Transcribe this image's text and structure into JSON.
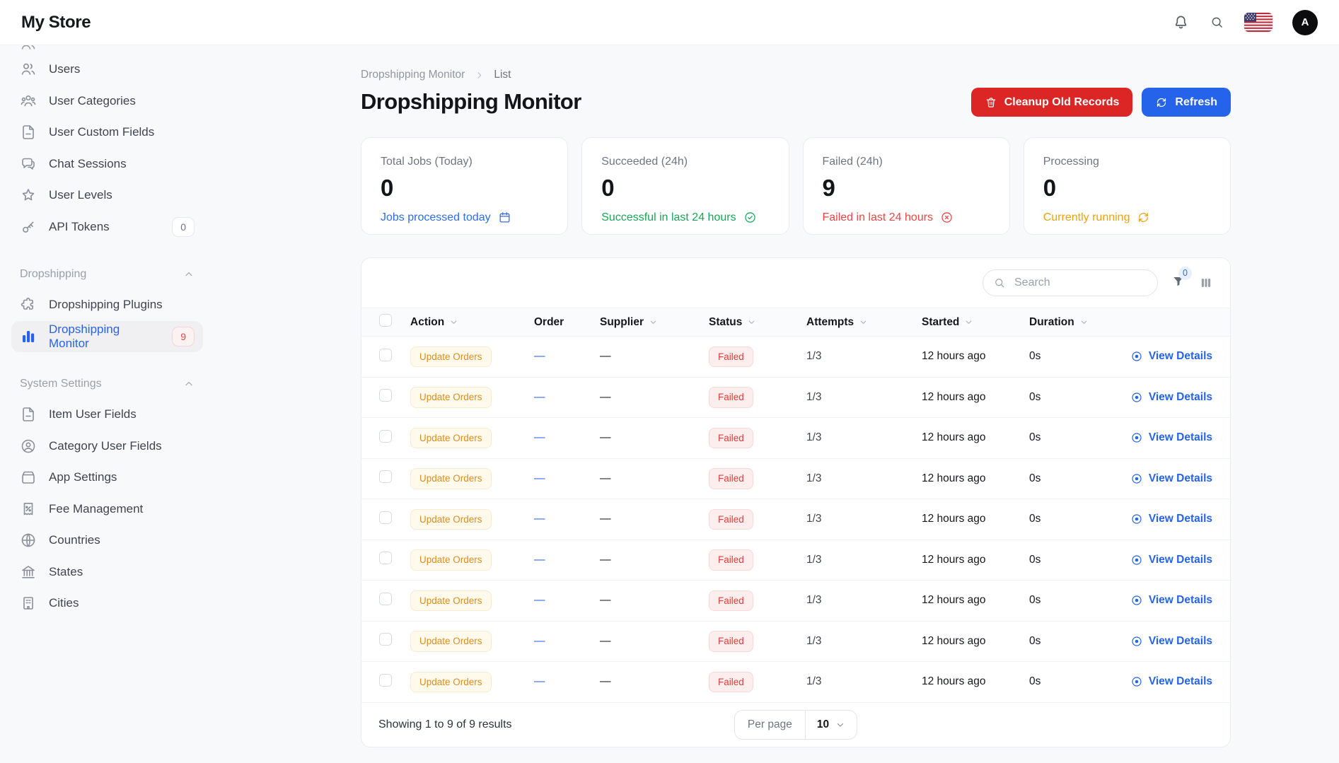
{
  "header": {
    "brand": "My Store",
    "avatar_initial": "A"
  },
  "colors": {
    "accent": "#2563eb",
    "danger": "#dc2626",
    "success": "#16a34a",
    "warning": "#f59e0b"
  },
  "sidebar": {
    "groups": [
      {
        "title": null,
        "items": [
          {
            "label": "Users",
            "icon": "users"
          },
          {
            "label": "User Categories",
            "icon": "user-group"
          },
          {
            "label": "User Custom Fields",
            "icon": "file-lines"
          },
          {
            "label": "Chat Sessions",
            "icon": "chat-bubbles"
          },
          {
            "label": "User Levels",
            "icon": "star"
          },
          {
            "label": "API Tokens",
            "icon": "key",
            "badge": "0",
            "badge_style": "neutral"
          }
        ]
      },
      {
        "title": "Dropshipping",
        "items": [
          {
            "label": "Dropshipping Plugins",
            "icon": "puzzle"
          },
          {
            "label": "Dropshipping Monitor",
            "icon": "bar-chart",
            "badge": "9",
            "badge_style": "danger",
            "active": true
          }
        ]
      },
      {
        "title": "System Settings",
        "items": [
          {
            "label": "Item User Fields",
            "icon": "file-lines"
          },
          {
            "label": "Category User Fields",
            "icon": "user-circle"
          },
          {
            "label": "App Settings",
            "icon": "archive-box"
          },
          {
            "label": "Fee Management",
            "icon": "receipt-percent"
          },
          {
            "label": "Countries",
            "icon": "globe"
          },
          {
            "label": "States",
            "icon": "landmark"
          },
          {
            "label": "Cities",
            "icon": "building"
          }
        ]
      }
    ]
  },
  "breadcrumb": {
    "items": [
      "Dropshipping Monitor",
      "List"
    ]
  },
  "page": {
    "title": "Dropshipping Monitor"
  },
  "actions": {
    "cleanup_label": "Cleanup Old Records",
    "refresh_label": "Refresh"
  },
  "stats": [
    {
      "label": "Total Jobs (Today)",
      "value": "0",
      "caption": "Jobs processed today",
      "icon": "calendar",
      "color": "#2f6ce8"
    },
    {
      "label": "Succeeded (24h)",
      "value": "0",
      "caption": "Successful in last 24 hours",
      "icon": "check-circle",
      "color": "#18a657"
    },
    {
      "label": "Failed (24h)",
      "value": "9",
      "caption": "Failed in last 24 hours",
      "icon": "x-circle",
      "color": "#ef4444"
    },
    {
      "label": "Processing",
      "value": "0",
      "caption": "Currently running",
      "icon": "arrows-rotate",
      "color": "#f0a10c"
    }
  ],
  "table": {
    "search_placeholder": "Search",
    "filter_badge": "0",
    "columns": [
      {
        "label": "Action",
        "sortable": true
      },
      {
        "label": "Order",
        "sortable": false
      },
      {
        "label": "Supplier",
        "sortable": true
      },
      {
        "label": "Status",
        "sortable": true
      },
      {
        "label": "Attempts",
        "sortable": true
      },
      {
        "label": "Started",
        "sortable": true
      },
      {
        "label": "Duration",
        "sortable": true
      }
    ],
    "rows": [
      {
        "action": "Update Orders",
        "order": "—",
        "supplier": "—",
        "status": "Failed",
        "attempts": "1/3",
        "started": "12 hours ago",
        "duration": "0s",
        "details": "View Details"
      },
      {
        "action": "Update Orders",
        "order": "—",
        "supplier": "—",
        "status": "Failed",
        "attempts": "1/3",
        "started": "12 hours ago",
        "duration": "0s",
        "details": "View Details"
      },
      {
        "action": "Update Orders",
        "order": "—",
        "supplier": "—",
        "status": "Failed",
        "attempts": "1/3",
        "started": "12 hours ago",
        "duration": "0s",
        "details": "View Details"
      },
      {
        "action": "Update Orders",
        "order": "—",
        "supplier": "—",
        "status": "Failed",
        "attempts": "1/3",
        "started": "12 hours ago",
        "duration": "0s",
        "details": "View Details"
      },
      {
        "action": "Update Orders",
        "order": "—",
        "supplier": "—",
        "status": "Failed",
        "attempts": "1/3",
        "started": "12 hours ago",
        "duration": "0s",
        "details": "View Details"
      },
      {
        "action": "Update Orders",
        "order": "—",
        "supplier": "—",
        "status": "Failed",
        "attempts": "1/3",
        "started": "12 hours ago",
        "duration": "0s",
        "details": "View Details"
      },
      {
        "action": "Update Orders",
        "order": "—",
        "supplier": "—",
        "status": "Failed",
        "attempts": "1/3",
        "started": "12 hours ago",
        "duration": "0s",
        "details": "View Details"
      },
      {
        "action": "Update Orders",
        "order": "—",
        "supplier": "—",
        "status": "Failed",
        "attempts": "1/3",
        "started": "12 hours ago",
        "duration": "0s",
        "details": "View Details"
      },
      {
        "action": "Update Orders",
        "order": "—",
        "supplier": "—",
        "status": "Failed",
        "attempts": "1/3",
        "started": "12 hours ago",
        "duration": "0s",
        "details": "View Details"
      }
    ],
    "footer": {
      "summary": "Showing 1 to 9 of 9 results",
      "per_page_label": "Per page",
      "per_page_value": "10"
    }
  }
}
